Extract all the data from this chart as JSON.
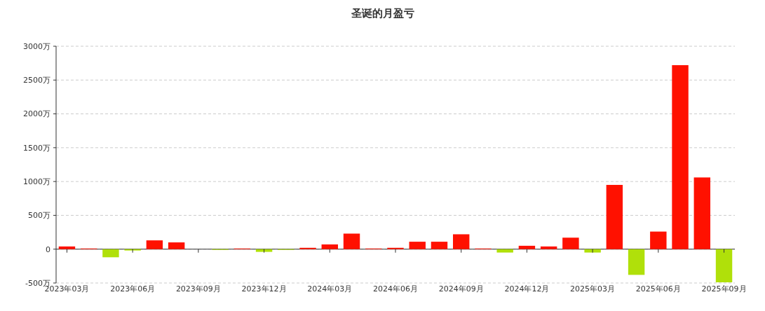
{
  "chart_data": {
    "type": "bar",
    "title": "圣诞的月盈亏",
    "categories": [
      "2023年03月",
      null,
      null,
      "2023年06月",
      null,
      null,
      "2023年09月",
      null,
      null,
      "2023年12月",
      null,
      null,
      "2024年03月",
      null,
      null,
      "2024年06月",
      null,
      null,
      "2024年09月",
      null,
      null,
      "2024年12月",
      null,
      null,
      "2025年03月",
      null,
      null,
      "2025年06月",
      null,
      null,
      "2025年09月"
    ],
    "values": [
      40,
      10,
      -120,
      -20,
      130,
      100,
      0,
      -10,
      10,
      -40,
      -10,
      20,
      70,
      230,
      10,
      20,
      110,
      110,
      220,
      10,
      -50,
      50,
      40,
      170,
      -50,
      950,
      -380,
      260,
      2720,
      1060,
      -490
    ],
    "colors": [
      "#ff1100",
      "#ff1100",
      "#b0e00a",
      "#b0e00a",
      "#ff1100",
      "#ff1100",
      "#ff1100",
      "#b0e00a",
      "#ff1100",
      "#b0e00a",
      "#b0e00a",
      "#ff1100",
      "#ff1100",
      "#ff1100",
      "#ff1100",
      "#ff1100",
      "#ff1100",
      "#ff1100",
      "#ff1100",
      "#ff1100",
      "#b0e00a",
      "#ff1100",
      "#ff1100",
      "#ff1100",
      "#b0e00a",
      "#ff1100",
      "#b0e00a",
      "#ff1100",
      "#ff1100",
      "#ff1100",
      "#b0e00a"
    ],
    "ylim": [
      -500,
      3000
    ],
    "yticks": [
      {
        "value": -500,
        "label": "-500万"
      },
      {
        "value": 0,
        "label": "0"
      },
      {
        "value": 500,
        "label": "500万"
      },
      {
        "value": 1000,
        "label": "1000万"
      },
      {
        "value": 1500,
        "label": "1500万"
      },
      {
        "value": 2000,
        "label": "2000万"
      },
      {
        "value": 2500,
        "label": "2500万"
      },
      {
        "value": 3000,
        "label": "3000万"
      }
    ],
    "grid": "y"
  }
}
